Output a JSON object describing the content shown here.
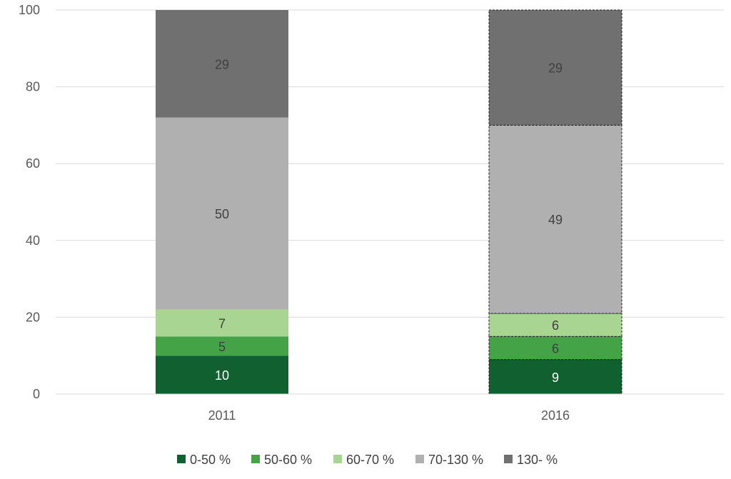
{
  "chart_data": {
    "type": "bar",
    "stacked": true,
    "title": "",
    "xlabel": "",
    "ylabel": "",
    "ylim": [
      0,
      100
    ],
    "yticks": [
      "0",
      "20",
      "40",
      "60",
      "80",
      "100"
    ],
    "grid": true,
    "legend_position": "bottom",
    "categories": [
      "2011",
      "2016"
    ],
    "series": [
      {
        "name": "0-50 %",
        "color": "#106030",
        "label_color": "#ffffff",
        "values": [
          10,
          9
        ],
        "labels": [
          "10",
          "9"
        ]
      },
      {
        "name": "50-60 %",
        "color": "#43a346",
        "label_color": "#404040",
        "values": [
          5,
          6
        ],
        "labels": [
          "5",
          "6"
        ]
      },
      {
        "name": "60-70 %",
        "color": "#a9d592",
        "label_color": "#404040",
        "values": [
          7,
          6
        ],
        "labels": [
          "7",
          "6"
        ]
      },
      {
        "name": "70-130 %",
        "color": "#b0b0b0",
        "label_color": "#404040",
        "values": [
          50,
          49
        ],
        "labels": [
          "50",
          "49"
        ]
      },
      {
        "name": "130- %",
        "color": "#707070",
        "label_color": "#404040",
        "values": [
          29,
          29
        ],
        "labels": [
          "29",
          "29"
        ]
      }
    ],
    "dashed_outline_categories": [
      "2016"
    ]
  }
}
